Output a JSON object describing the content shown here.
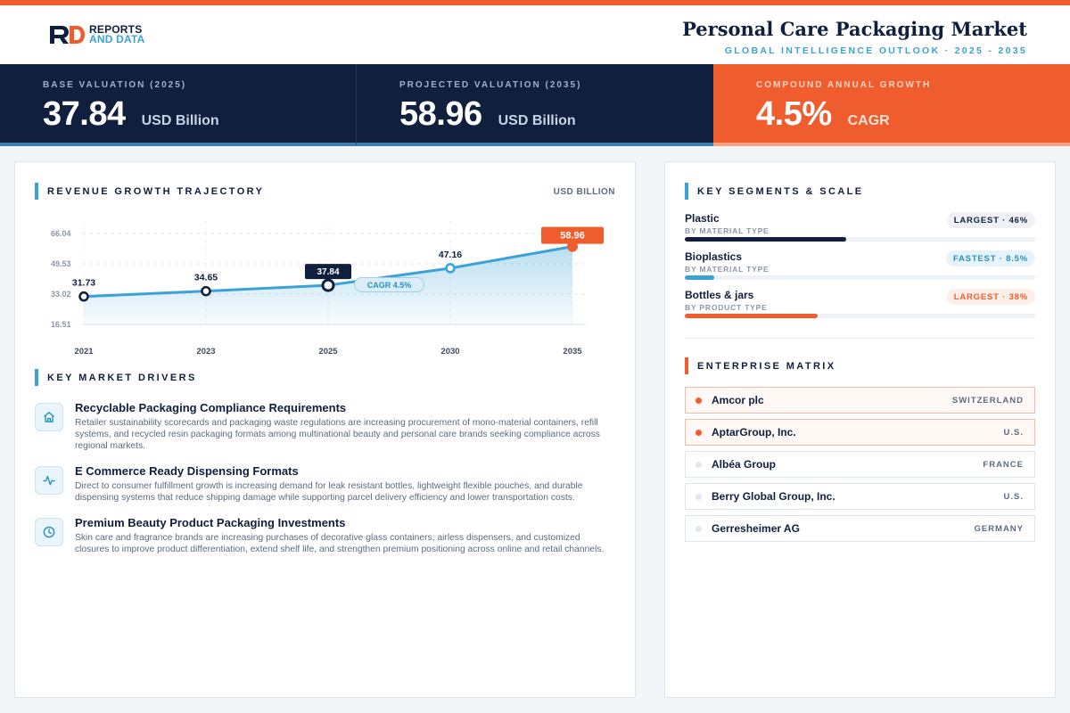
{
  "brand": {
    "logo_line1": "REPORTS",
    "logo_line2": "AND DATA"
  },
  "header": {
    "title": "Personal Care Packaging Market",
    "subtitle": "GLOBAL INTELLIGENCE OUTLOOK  ·  2025 - 2035"
  },
  "kpis": [
    {
      "label": "BASE VALUATION (2025)",
      "value": "37.84",
      "unit": "USD Billion"
    },
    {
      "label": "PROJECTED VALUATION (2035)",
      "value": "58.96",
      "unit": "USD Billion"
    },
    {
      "label": "COMPOUND ANNUAL GROWTH",
      "value": "4.5%",
      "unit": "CAGR"
    }
  ],
  "chart_section": {
    "title": "REVENUE GROWTH TRAJECTORY",
    "units": "USD BILLION"
  },
  "chart_data": {
    "type": "area",
    "title": "REVENUE GROWTH TRAJECTORY",
    "ylabel": "USD BILLION",
    "x": [
      "2021",
      "2023",
      "2025",
      "2030",
      "2035"
    ],
    "values": [
      31.73,
      34.65,
      37.84,
      47.16,
      58.96
    ],
    "data_labels": [
      "31.73",
      "34.65",
      "37.84",
      "47.16",
      "58.96"
    ],
    "y_ticks": [
      "66.04",
      "49.53",
      "33.02",
      "16.51"
    ],
    "ylim": [
      16.51,
      66.04
    ],
    "annotation": "CAGR 4.5%",
    "grid": true,
    "colors": {
      "line": "#3aa2d6",
      "highlight": "#0f1f3d",
      "final": "#ef5d2f"
    }
  },
  "drivers": {
    "title": "KEY MARKET DRIVERS",
    "items": [
      {
        "icon": "home-icon",
        "title": "Recyclable Packaging Compliance Requirements",
        "desc": "Retailer sustainability scorecards and packaging waste regulations are increasing procurement of mono-material containers, refill systems, and recycled resin packaging formats among multinational beauty and personal care brands seeking compliance across regional markets."
      },
      {
        "icon": "pulse-icon",
        "title": "E Commerce Ready Dispensing Formats",
        "desc": "Direct to consumer fulfillment growth is increasing demand for leak resistant bottles, lightweight flexible pouches, and durable dispensing systems that reduce shipping damage while supporting parcel delivery efficiency and lower transportation costs."
      },
      {
        "icon": "clock-icon",
        "title": "Premium Beauty Product Packaging Investments",
        "desc": "Skin care and fragrance brands are increasing purchases of decorative glass containers, airless dispensers, and customized closures to improve product differentiation, extend shelf life, and strengthen premium positioning across online and retail channels."
      }
    ]
  },
  "segments": {
    "title": "KEY SEGMENTS & SCALE",
    "items": [
      {
        "name": "Plastic",
        "sub": "BY MATERIAL TYPE",
        "badge": "LARGEST · 46%",
        "share": 0.46,
        "color": "#0f1f3d",
        "badge_bg": "#eef1f5",
        "badge_fg": "#0f1f3d"
      },
      {
        "name": "Bioplastics",
        "sub": "BY MATERIAL TYPE",
        "badge": "FASTEST · 8.5%",
        "share": 0.085,
        "color": "#3aa2d6",
        "badge_bg": "#e6f3fa",
        "badge_fg": "#2a8fc4"
      },
      {
        "name": "Bottles & jars",
        "sub": "BY PRODUCT TYPE",
        "badge": "LARGEST · 38%",
        "share": 0.38,
        "color": "#ef5d2f",
        "badge_bg": "#fdeee8",
        "badge_fg": "#ef5d2f"
      }
    ]
  },
  "matrix": {
    "title": "ENTERPRISE MATRIX",
    "items": [
      {
        "name": "Amcor plc",
        "country": "SWITZERLAND",
        "highlight": true
      },
      {
        "name": "AptarGroup, Inc.",
        "country": "U.S.",
        "highlight": true
      },
      {
        "name": "Albéa Group",
        "country": "FRANCE",
        "highlight": false
      },
      {
        "name": "Berry Global Group, Inc.",
        "country": "U.S.",
        "highlight": false
      },
      {
        "name": "Gerresheimer AG",
        "country": "GERMANY",
        "highlight": false
      }
    ]
  }
}
